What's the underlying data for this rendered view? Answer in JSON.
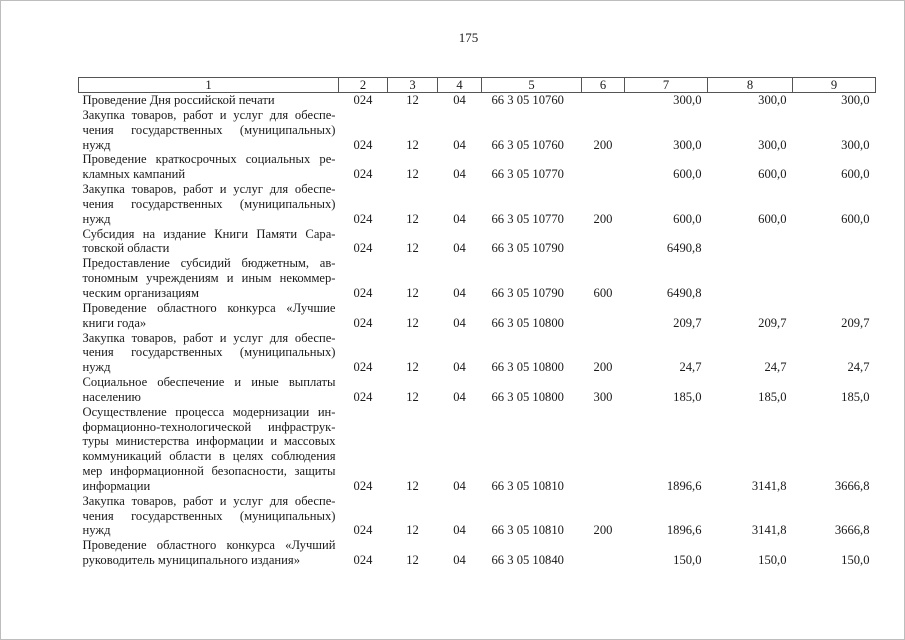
{
  "page_number": "175",
  "table": {
    "headers": [
      "1",
      "2",
      "3",
      "4",
      "5",
      "6",
      "7",
      "8",
      "9"
    ],
    "rows": [
      {
        "lines": [
          "Проведение Дня российской печати"
        ],
        "c2": "024",
        "c3": "12",
        "c4": "04",
        "c5": "66 3 05 10760",
        "c6": "",
        "c7": "300,0",
        "c8": "300,0",
        "c9": "300,0"
      },
      {
        "lines": [
          "Закупка товаров, работ и услуг для обеспе-",
          "чения государственных (муниципальных)",
          "нужд"
        ],
        "c2": "024",
        "c3": "12",
        "c4": "04",
        "c5": "66 3 05 10760",
        "c6": "200",
        "c7": "300,0",
        "c8": "300,0",
        "c9": "300,0"
      },
      {
        "lines": [
          "Проведение краткосрочных социальных ре-",
          "кламных кампаний"
        ],
        "c2": "024",
        "c3": "12",
        "c4": "04",
        "c5": "66 3 05 10770",
        "c6": "",
        "c7": "600,0",
        "c8": "600,0",
        "c9": "600,0"
      },
      {
        "lines": [
          "Закупка товаров, работ и услуг для обеспе-",
          "чения государственных (муниципальных)",
          "нужд"
        ],
        "c2": "024",
        "c3": "12",
        "c4": "04",
        "c5": "66 3 05 10770",
        "c6": "200",
        "c7": "600,0",
        "c8": "600,0",
        "c9": "600,0"
      },
      {
        "lines": [
          "Субсидия на издание Книги Памяти Сара-",
          "товской области"
        ],
        "c2": "024",
        "c3": "12",
        "c4": "04",
        "c5": "66 3 05 10790",
        "c6": "",
        "c7": "6490,8",
        "c8": "",
        "c9": ""
      },
      {
        "lines": [
          "Предоставление субсидий бюджетным, ав-",
          "тономным учреждениям и иным некоммер-",
          "ческим организациям"
        ],
        "c2": "024",
        "c3": "12",
        "c4": "04",
        "c5": "66 3 05 10790",
        "c6": "600",
        "c7": "6490,8",
        "c8": "",
        "c9": ""
      },
      {
        "lines": [
          "Проведение областного конкурса «Лучшие",
          "книги года»"
        ],
        "c2": "024",
        "c3": "12",
        "c4": "04",
        "c5": "66 3 05 10800",
        "c6": "",
        "c7": "209,7",
        "c8": "209,7",
        "c9": "209,7"
      },
      {
        "lines": [
          "Закупка товаров, работ и услуг для обеспе-",
          "чения государственных (муниципальных)",
          "нужд"
        ],
        "c2": "024",
        "c3": "12",
        "c4": "04",
        "c5": "66 3 05 10800",
        "c6": "200",
        "c7": "24,7",
        "c8": "24,7",
        "c9": "24,7"
      },
      {
        "lines": [
          "Социальное обеспечение и иные выплаты",
          "населению"
        ],
        "c2": "024",
        "c3": "12",
        "c4": "04",
        "c5": "66 3 05 10800",
        "c6": "300",
        "c7": "185,0",
        "c8": "185,0",
        "c9": "185,0"
      },
      {
        "lines": [
          "Осуществление процесса модернизации ин-",
          "формационно-технологической инфраструк-",
          "туры министерства информации и массовых",
          "коммуникаций области в целях соблюдения",
          "мер информационной безопасности, защиты",
          "информации"
        ],
        "c2": "024",
        "c3": "12",
        "c4": "04",
        "c5": "66 3 05 10810",
        "c6": "",
        "c7": "1896,6",
        "c8": "3141,8",
        "c9": "3666,8"
      },
      {
        "lines": [
          "Закупка товаров, работ и услуг для обеспе-",
          "чения государственных (муниципальных)",
          "нужд"
        ],
        "c2": "024",
        "c3": "12",
        "c4": "04",
        "c5": "66 3 05 10810",
        "c6": "200",
        "c7": "1896,6",
        "c8": "3141,8",
        "c9": "3666,8"
      },
      {
        "lines": [
          "Проведение областного конкурса «Лучший",
          "руководитель муниципального издания»"
        ],
        "c2": "024",
        "c3": "12",
        "c4": "04",
        "c5": "66 3 05 10840",
        "c6": "",
        "c7": "150,0",
        "c8": "150,0",
        "c9": "150,0"
      }
    ]
  }
}
